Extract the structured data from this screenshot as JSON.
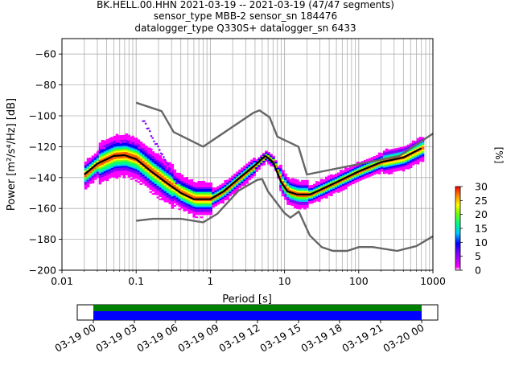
{
  "title": {
    "line1": "BK.HELL.00.HHN   2021-03-19 -- 2021-03-19  (47/47 segments)",
    "line2": "sensor_type MBB-2 sensor_sn 184476",
    "line3": "datalogger_type Q330S+ datalogger_sn 6433"
  },
  "chart_data": {
    "type": "heatmap",
    "xlabel": "Period [s]",
    "ylabel": "Power [m²/s⁴/Hz] [dB]",
    "xscale": "log",
    "xlim": [
      0.01,
      1000
    ],
    "ylim": [
      -200,
      -50
    ],
    "x_ticks": [
      "0.01",
      "0.1",
      "1",
      "10",
      "100",
      "1000"
    ],
    "x_tick_values": [
      0.01,
      0.1,
      1,
      10,
      100,
      1000
    ],
    "y_ticks": [
      "−200",
      "−180",
      "−160",
      "−140",
      "−120",
      "−100",
      "−80",
      "−60"
    ],
    "y_tick_values": [
      -200,
      -180,
      -160,
      -140,
      -120,
      -100,
      -80,
      -60
    ],
    "grid": true,
    "colorbar": {
      "label": "[%]",
      "ticks": [
        "0",
        "5",
        "10",
        "15",
        "20",
        "25",
        "30"
      ],
      "tick_values": [
        0,
        5,
        10,
        15,
        20,
        25,
        30
      ],
      "range": [
        0,
        30
      ]
    },
    "series": [
      {
        "kind": "noise-model-high",
        "color": "#666666",
        "points": [
          [
            0.1,
            -91.5
          ],
          [
            0.22,
            -97
          ],
          [
            0.32,
            -110.5
          ],
          [
            0.8,
            -120
          ],
          [
            3.8,
            -98
          ],
          [
            4.6,
            -96.5
          ],
          [
            6.3,
            -101
          ],
          [
            8,
            -113.5
          ],
          [
            15.4,
            -120
          ],
          [
            20,
            -138
          ],
          [
            354.8,
            -126
          ],
          [
            1000,
            -111.5
          ]
        ]
      },
      {
        "kind": "noise-model-low",
        "color": "#666666",
        "points": [
          [
            0.1,
            -168
          ],
          [
            0.17,
            -166.7
          ],
          [
            0.4,
            -166.7
          ],
          [
            0.8,
            -169
          ],
          [
            1.24,
            -163.5
          ],
          [
            2.4,
            -148.5
          ],
          [
            4.3,
            -141.5
          ],
          [
            5,
            -141
          ],
          [
            6,
            -149
          ],
          [
            10,
            -163
          ],
          [
            12,
            -166
          ],
          [
            15.6,
            -162
          ],
          [
            21.9,
            -177.5
          ],
          [
            31.6,
            -185
          ],
          [
            45,
            -187.5
          ],
          [
            70,
            -187.5
          ],
          [
            101,
            -185
          ],
          [
            154,
            -185
          ],
          [
            328,
            -187.5
          ],
          [
            600,
            -184.4
          ],
          [
            1000,
            -178
          ]
        ]
      },
      {
        "kind": "mode",
        "color": "#000000",
        "points": [
          [
            0.02,
            -138
          ],
          [
            0.03,
            -131
          ],
          [
            0.05,
            -126
          ],
          [
            0.07,
            -125.5
          ],
          [
            0.1,
            -128
          ],
          [
            0.15,
            -135
          ],
          [
            0.25,
            -143
          ],
          [
            0.4,
            -150
          ],
          [
            0.6,
            -154
          ],
          [
            1,
            -154
          ],
          [
            1.5,
            -149
          ],
          [
            2.5,
            -140
          ],
          [
            4,
            -132
          ],
          [
            5.5,
            -126
          ],
          [
            7,
            -130
          ],
          [
            9,
            -143
          ],
          [
            11,
            -149
          ],
          [
            15,
            -151
          ],
          [
            22,
            -151
          ],
          [
            30,
            -148
          ],
          [
            50,
            -143
          ],
          [
            100,
            -136
          ],
          [
            200,
            -130
          ],
          [
            400,
            -127
          ],
          [
            700,
            -121
          ]
        ]
      }
    ]
  },
  "timeline": {
    "tick_labels": [
      "03-19 00",
      "03-19 03",
      "03-19 06",
      "03-19 09",
      "03-19 12",
      "03-19 15",
      "03-19 18",
      "03-19 21",
      "03-20 00"
    ],
    "colors": {
      "data": "#0000ff",
      "gaps": "#008000"
    }
  }
}
